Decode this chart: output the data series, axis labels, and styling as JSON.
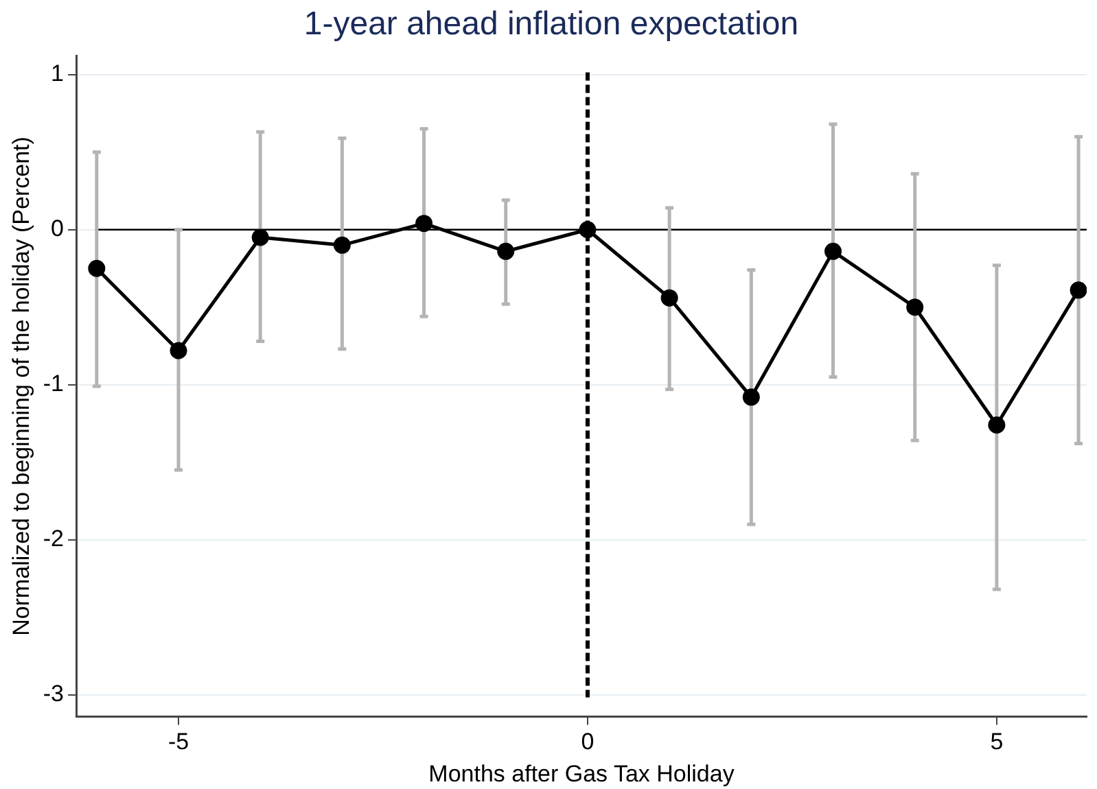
{
  "chart_data": {
    "type": "line",
    "title": "1-year ahead inflation expectation",
    "xlabel": "Months after Gas Tax Holiday",
    "ylabel": "Normalized to beginning of the holiday (Percent)",
    "x": [
      -6,
      -5,
      -4,
      -3,
      -2,
      -1,
      0,
      1,
      2,
      3,
      4,
      5,
      6
    ],
    "series": [
      {
        "color": "#000000",
        "values": [
          -0.25,
          -0.78,
          -0.05,
          -0.1,
          0.04,
          -0.14,
          0,
          -0.44,
          -1.08,
          -0.14,
          -0.5,
          -1.26,
          -0.39
        ],
        "errors": [
          [
            -1.01,
            0.5
          ],
          [
            -1.55,
            0
          ],
          [
            -0.72,
            0.63
          ],
          [
            -0.77,
            0.59
          ],
          [
            -0.56,
            0.65
          ],
          [
            -0.48,
            0.19
          ],
          null,
          [
            -1.03,
            0.14
          ],
          [
            -1.9,
            -0.26
          ],
          [
            -0.95,
            0.68
          ],
          [
            -1.36,
            0.36
          ],
          [
            -2.32,
            -0.23
          ],
          [
            -1.38,
            0.6
          ]
        ]
      }
    ],
    "xlim": [
      -6.25,
      6.1
    ],
    "xticks": [
      -5,
      0,
      5
    ],
    "ylim": [
      -3.14,
      1.12
    ],
    "yticks": [
      -3,
      -2,
      -1,
      0,
      1
    ],
    "grid": "y",
    "legend": false,
    "marker": "circle",
    "line_style": "solid",
    "ref_lines": [
      {
        "axis": "y",
        "value": 0,
        "color": "#000000",
        "line_style": "solid"
      },
      {
        "axis": "x",
        "value": 0,
        "color": "#000000",
        "line_style": "dashed"
      }
    ]
  }
}
